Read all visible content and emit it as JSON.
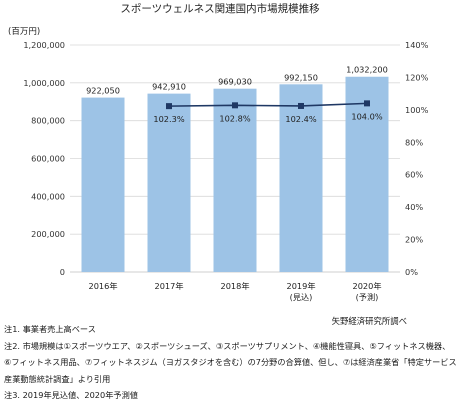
{
  "chart_data": {
    "type": "bar",
    "title": "スポーツウェルネス関連国内市場規模推移",
    "y_unit_label": "(百万円)",
    "categories": [
      [
        "2016年"
      ],
      [
        "2017年"
      ],
      [
        "2018年"
      ],
      [
        "2019年",
        "(見込)"
      ],
      [
        "2020年",
        "(予測)"
      ]
    ],
    "series": [
      {
        "name": "",
        "type": "bar",
        "axis": "left",
        "values": [
          922050,
          942910,
          969030,
          992150,
          1032200
        ],
        "labels": [
          "922,050",
          "942,910",
          "969,030",
          "992,150",
          "1,032,200"
        ]
      },
      {
        "name": "",
        "type": "line",
        "axis": "right",
        "values": [
          null,
          102.3,
          102.8,
          102.4,
          104.0
        ],
        "labels": [
          "",
          "102.3%",
          "102.8%",
          "102.4%",
          "104.0%"
        ]
      }
    ],
    "ylim_left": [
      0,
      1200000
    ],
    "yticks_left": [
      "0",
      "200,000",
      "400,000",
      "600,000",
      "800,000",
      "1,000,000",
      "1,200,000"
    ],
    "ylim_right": [
      0,
      140
    ],
    "yticks_right": [
      "0%",
      "20%",
      "40%",
      "60%",
      "80%",
      "100%",
      "120%",
      "140%"
    ],
    "grid": true,
    "colors": {
      "bar": "#9dc3e6",
      "line": "#1f3864",
      "grid": "#d9d9d9",
      "axis": "#bfbfbf"
    }
  },
  "source_text": "矢野経済研究所調べ",
  "notes": [
    "注1. 事業者売上高ベース",
    "注2. 市場規模は①スポーツウエア、②スポーツシューズ、③スポーツサプリメント、④機能性寝具、⑤フィットネス機器、",
    "⑥フィットネス用品、⑦フィットネスジム（ヨガスタジオを含む）の7分野の合算値、但し、⑦は経済産業省「特定サービス",
    "産業動態統計調査」より引用",
    "注3. 2019年見込値、2020年予測値"
  ]
}
